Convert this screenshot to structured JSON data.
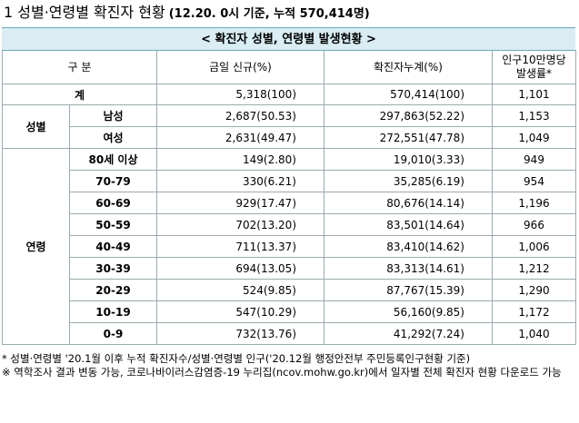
{
  "title": {
    "main": "1  성별·연령별 확진자 현황",
    "sub": "(12.20. 0시 기준, 누적 570,414명)"
  },
  "caption": "< 확진자 성별, 연령별 발생현황 >",
  "headers": {
    "category": "구 분",
    "new": "금일 신규(%)",
    "cumulative": "확진자누계(%)",
    "rate_line1": "인구10만명당",
    "rate_line2": "발생률*"
  },
  "total": {
    "label": "계",
    "new": "5,318(100)",
    "cumulative": "570,414(100)",
    "rate": "1,101"
  },
  "gender": {
    "label": "성별",
    "rows": [
      {
        "label": "남성",
        "new": "2,687(50.53)",
        "cumulative": "297,863(52.22)",
        "rate": "1,153"
      },
      {
        "label": "여성",
        "new": "2,631(49.47)",
        "cumulative": "272,551(47.78)",
        "rate": "1,049"
      }
    ]
  },
  "age": {
    "label": "연령",
    "rows": [
      {
        "label": "80세 이상",
        "new": "149(2.80)",
        "cumulative": "19,010(3.33)",
        "rate": "949"
      },
      {
        "label": "70-79",
        "new": "330(6.21)",
        "cumulative": "35,285(6.19)",
        "rate": "954"
      },
      {
        "label": "60-69",
        "new": "929(17.47)",
        "cumulative": "80,676(14.14)",
        "rate": "1,196"
      },
      {
        "label": "50-59",
        "new": "702(13.20)",
        "cumulative": "83,501(14.64)",
        "rate": "966"
      },
      {
        "label": "40-49",
        "new": "711(13.37)",
        "cumulative": "83,410(14.62)",
        "rate": "1,006"
      },
      {
        "label": "30-39",
        "new": "694(13.05)",
        "cumulative": "83,313(14.61)",
        "rate": "1,212"
      },
      {
        "label": "20-29",
        "new": "524(9.85)",
        "cumulative": "87,767(15.39)",
        "rate": "1,290"
      },
      {
        "label": "10-19",
        "new": "547(10.29)",
        "cumulative": "56,160(9.85)",
        "rate": "1,172"
      },
      {
        "label": "0-9",
        "new": "732(13.76)",
        "cumulative": "41,292(7.24)",
        "rate": "1,040"
      }
    ]
  },
  "notes": [
    "* 성별·연령별 '20.1월 이후 누적 확진자수/성별·연령별 인구('20.12월 행정안전부 주민등록인구현황 기준)",
    "※ 역학조사 결과 변동 가능, 코로나바이러스감염증-19 누리집(ncov.mohw.go.kr)에서 일자별 전체 확진자 현황 다운로드 가능"
  ]
}
